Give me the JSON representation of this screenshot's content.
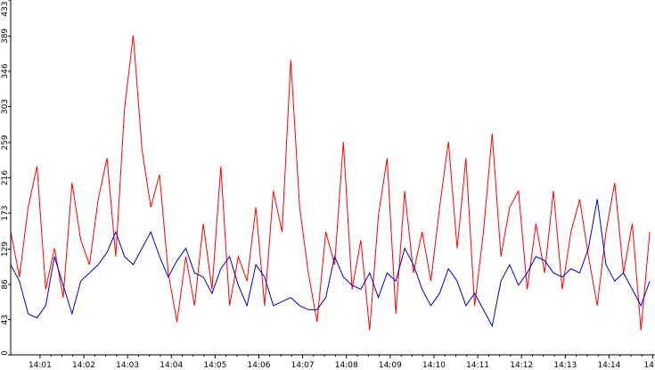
{
  "chart_data": {
    "type": "line",
    "title": "",
    "xlabel": "",
    "ylabel": "",
    "x_ticks": [
      "14:01",
      "14:02",
      "14:03",
      "14:04",
      "14:05",
      "14:06",
      "14:07",
      "14:08",
      "14:09",
      "14:10",
      "14:11",
      "14:12",
      "14:13",
      "14:14",
      "14"
    ],
    "y_ticks": [
      "0",
      "43",
      "86",
      "129",
      "173",
      "216",
      "259",
      "303",
      "346",
      "389",
      "433"
    ],
    "ylim": [
      0,
      433
    ],
    "xlim_minutes": [
      0.0,
      14.72
    ],
    "x_start": "14:00:20",
    "grid": false,
    "legend": "none",
    "colors": {
      "red_series": "#ff0000",
      "blue_series": "#0000cc"
    },
    "series": [
      {
        "color": "red",
        "x": [
          0.0,
          0.2,
          0.4,
          0.6,
          0.8,
          1.0,
          1.2,
          1.4,
          1.6,
          1.8,
          2.0,
          2.2,
          2.4,
          2.6,
          2.8,
          3.0,
          3.2,
          3.4,
          3.6,
          3.8,
          4.0,
          4.2,
          4.4,
          4.6,
          4.8,
          5.0,
          5.2,
          5.4,
          5.6,
          5.8,
          6.0,
          6.2,
          6.4,
          6.6,
          6.8,
          7.0,
          7.2,
          7.4,
          7.6,
          7.8,
          8.0,
          8.2,
          8.4,
          8.6,
          8.8,
          9.0,
          9.2,
          9.4,
          9.6,
          9.8,
          10.0,
          10.2,
          10.4,
          10.6,
          10.8,
          11.0,
          11.2,
          11.4,
          11.6,
          11.8,
          12.0,
          12.2,
          12.4,
          12.6,
          12.8,
          13.0,
          13.2,
          13.4,
          13.6,
          13.8,
          14.0,
          14.2,
          14.4,
          14.6
        ],
        "y": [
          150,
          95,
          180,
          230,
          80,
          130,
          70,
          210,
          140,
          110,
          190,
          240,
          120,
          300,
          390,
          250,
          180,
          220,
          100,
          40,
          120,
          60,
          160,
          80,
          230,
          60,
          120,
          90,
          180,
          60,
          200,
          150,
          360,
          180,
          100,
          40,
          150,
          110,
          260,
          80,
          140,
          30,
          170,
          240,
          50,
          200,
          100,
          150,
          90,
          180,
          260,
          130,
          240,
          60,
          150,
          270,
          120,
          180,
          200,
          80,
          160,
          100,
          200,
          80,
          150,
          190,
          120,
          60,
          150,
          210,
          100,
          160,
          30,
          150
        ],
        "peaks_note": ""
      },
      {
        "color": "blue",
        "x": [
          0.0,
          0.2,
          0.4,
          0.6,
          0.8,
          1.0,
          1.2,
          1.4,
          1.6,
          1.8,
          2.0,
          2.2,
          2.4,
          2.6,
          2.8,
          3.0,
          3.2,
          3.4,
          3.6,
          3.8,
          4.0,
          4.2,
          4.4,
          4.6,
          4.8,
          5.0,
          5.2,
          5.4,
          5.6,
          5.8,
          6.0,
          6.2,
          6.4,
          6.6,
          6.8,
          7.0,
          7.2,
          7.4,
          7.6,
          7.8,
          8.0,
          8.2,
          8.4,
          8.6,
          8.8,
          9.0,
          9.2,
          9.4,
          9.6,
          9.8,
          10.0,
          10.2,
          10.4,
          10.6,
          10.8,
          11.0,
          11.2,
          11.4,
          11.6,
          11.8,
          12.0,
          12.2,
          12.4,
          12.6,
          12.8,
          13.0,
          13.2,
          13.4,
          13.6,
          13.8,
          14.0,
          14.2,
          14.4,
          14.6
        ],
        "y": [
          110,
          90,
          50,
          45,
          60,
          120,
          85,
          50,
          90,
          100,
          110,
          125,
          150,
          120,
          110,
          130,
          150,
          120,
          95,
          115,
          130,
          100,
          95,
          75,
          105,
          120,
          85,
          60,
          110,
          95,
          60,
          65,
          70,
          60,
          55,
          55,
          70,
          120,
          95,
          85,
          80,
          100,
          70,
          100,
          90,
          130,
          110,
          80,
          60,
          75,
          105,
          90,
          60,
          75,
          55,
          35,
          90,
          110,
          85,
          100,
          120,
          115,
          100,
          95,
          105,
          100,
          130,
          190,
          110,
          90,
          100,
          80,
          60,
          90
        ]
      }
    ]
  }
}
